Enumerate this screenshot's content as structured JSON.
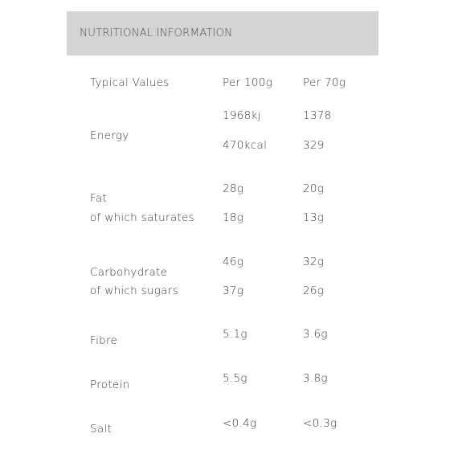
{
  "header": {
    "title": "NUTRITIONAL INFORMATION"
  },
  "table": {
    "columns": [
      "Typical Values",
      "Per 100g",
      "Per 70g"
    ],
    "rows": [
      {
        "label": [
          "Energy"
        ],
        "per_100g": [
          "1968kj",
          "470kcal"
        ],
        "per_70g": [
          "1378",
          "329"
        ]
      },
      {
        "label": [
          "Fat",
          "of which saturates"
        ],
        "per_100g": [
          "28g",
          "18g"
        ],
        "per_70g": [
          "20g",
          "13g"
        ]
      },
      {
        "label": [
          "Carbohydrate",
          "of which sugars"
        ],
        "per_100g": [
          "46g",
          "37g"
        ],
        "per_70g": [
          "32g",
          "26g"
        ]
      },
      {
        "label": [
          "Fibre"
        ],
        "per_100g": [
          "5.1g"
        ],
        "per_70g": [
          "3.6g"
        ]
      },
      {
        "label": [
          "Protein"
        ],
        "per_100g": [
          "5.5g"
        ],
        "per_70g": [
          "3.8g"
        ]
      },
      {
        "label": [
          "Salt"
        ],
        "per_100g": [
          "<0.4g"
        ],
        "per_70g": [
          "<0.3g"
        ]
      }
    ]
  }
}
